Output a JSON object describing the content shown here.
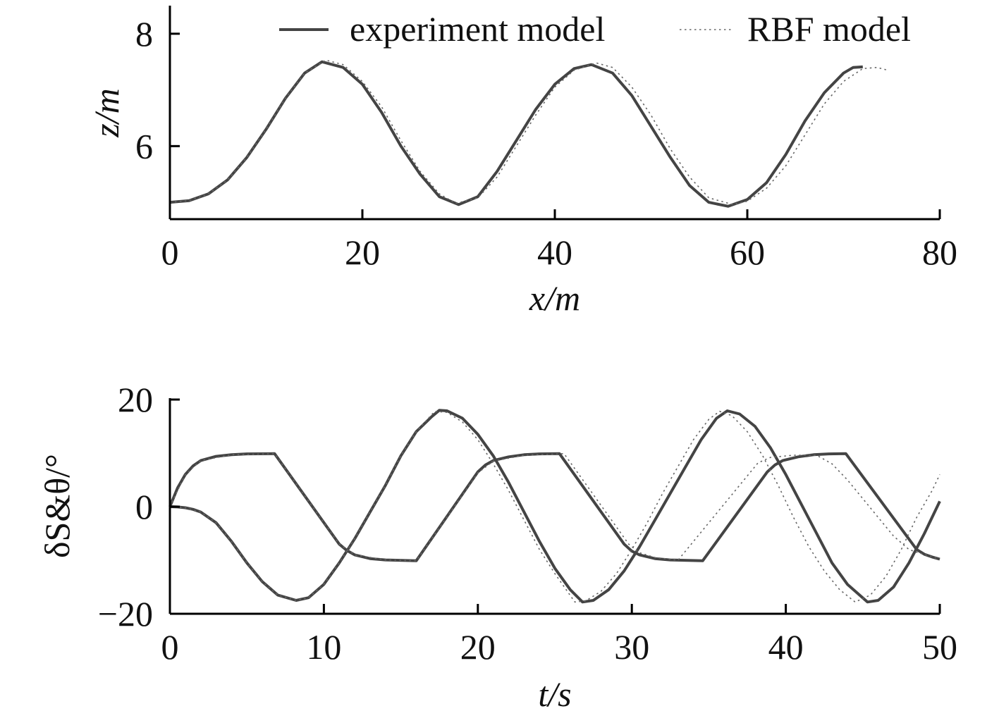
{
  "chart_data": [
    {
      "type": "line",
      "xlabel": "x/m",
      "ylabel": "z/m",
      "xlim": [
        0,
        80
      ],
      "ylim": [
        4.7,
        8.5
      ],
      "xticks": [
        "0",
        "20",
        "40",
        "60",
        "80"
      ],
      "yticks": [
        "6",
        "8"
      ],
      "legend": {
        "placement": "top-right",
        "entries": [
          "experiment model",
          "RBF model"
        ]
      },
      "series": [
        {
          "name": "experiment model",
          "style": "solid",
          "color": "#444444",
          "points": [
            [
              0,
              5.0
            ],
            [
              2,
              5.03
            ],
            [
              4,
              5.15
            ],
            [
              6,
              5.4
            ],
            [
              8,
              5.8
            ],
            [
              10,
              6.3
            ],
            [
              12,
              6.85
            ],
            [
              14,
              7.3
            ],
            [
              15.8,
              7.5
            ],
            [
              18,
              7.4
            ],
            [
              20,
              7.1
            ],
            [
              22,
              6.6
            ],
            [
              24,
              6.0
            ],
            [
              26,
              5.5
            ],
            [
              28,
              5.1
            ],
            [
              30,
              4.96
            ],
            [
              32,
              5.1
            ],
            [
              34,
              5.55
            ],
            [
              36,
              6.1
            ],
            [
              38,
              6.65
            ],
            [
              40,
              7.1
            ],
            [
              42,
              7.38
            ],
            [
              43.8,
              7.45
            ],
            [
              46,
              7.3
            ],
            [
              48,
              6.9
            ],
            [
              50,
              6.35
            ],
            [
              52,
              5.8
            ],
            [
              54,
              5.3
            ],
            [
              56,
              5.0
            ],
            [
              58,
              4.93
            ],
            [
              60,
              5.05
            ],
            [
              62,
              5.35
            ],
            [
              64,
              5.85
            ],
            [
              66,
              6.45
            ],
            [
              68,
              6.95
            ],
            [
              70,
              7.3
            ],
            [
              71,
              7.4
            ],
            [
              72,
              7.41
            ]
          ]
        },
        {
          "name": "RBF model",
          "style": "dotted",
          "color": "#666666",
          "points": [
            [
              0,
              5.0
            ],
            [
              2,
              5.03
            ],
            [
              4,
              5.15
            ],
            [
              6,
              5.4
            ],
            [
              8,
              5.8
            ],
            [
              10,
              6.3
            ],
            [
              12,
              6.85
            ],
            [
              14,
              7.3
            ],
            [
              16.2,
              7.53
            ],
            [
              18,
              7.45
            ],
            [
              20,
              7.15
            ],
            [
              22,
              6.7
            ],
            [
              24,
              6.1
            ],
            [
              26,
              5.55
            ],
            [
              28,
              5.15
            ],
            [
              29.7,
              4.98
            ],
            [
              32,
              5.08
            ],
            [
              34,
              5.45
            ],
            [
              36,
              6.0
            ],
            [
              38,
              6.55
            ],
            [
              40,
              7.05
            ],
            [
              42,
              7.35
            ],
            [
              44.3,
              7.48
            ],
            [
              46,
              7.4
            ],
            [
              48,
              7.05
            ],
            [
              50,
              6.55
            ],
            [
              52,
              5.95
            ],
            [
              54,
              5.45
            ],
            [
              56,
              5.08
            ],
            [
              58.5,
              4.96
            ],
            [
              60,
              5.02
            ],
            [
              62,
              5.25
            ],
            [
              64,
              5.65
            ],
            [
              66,
              6.2
            ],
            [
              68,
              6.75
            ],
            [
              70,
              7.15
            ],
            [
              72,
              7.38
            ],
            [
              73.5,
              7.4
            ],
            [
              74.6,
              7.35
            ]
          ]
        }
      ]
    },
    {
      "type": "line",
      "xlabel": "t/s",
      "ylabel": "δS&θ/°",
      "xlim": [
        0,
        50
      ],
      "ylim": [
        -20,
        20
      ],
      "xticks": [
        "0",
        "10",
        "20",
        "30",
        "40",
        "50"
      ],
      "yticks": [
        "−20",
        "0",
        "20"
      ],
      "series": [
        {
          "style": "solid",
          "color": "#444444",
          "points": [
            [
              0,
              0
            ],
            [
              0.5,
              3.5
            ],
            [
              1,
              6
            ],
            [
              1.5,
              7.6
            ],
            [
              2,
              8.6
            ],
            [
              3,
              9.4
            ],
            [
              4,
              9.7
            ],
            [
              5,
              9.85
            ],
            [
              6.8,
              9.9
            ],
            [
              11,
              -7
            ],
            [
              11.5,
              -8.2
            ],
            [
              12,
              -9
            ],
            [
              13,
              -9.7
            ],
            [
              14,
              -9.95
            ],
            [
              16,
              -10.1
            ],
            [
              20,
              6.5
            ],
            [
              20.5,
              7.8
            ],
            [
              21,
              8.6
            ],
            [
              22,
              9.3
            ],
            [
              23,
              9.7
            ],
            [
              24,
              9.85
            ],
            [
              25.3,
              9.9
            ],
            [
              29.5,
              -7
            ],
            [
              30,
              -8.3
            ],
            [
              30.5,
              -9
            ],
            [
              31.5,
              -9.7
            ],
            [
              32.5,
              -9.95
            ],
            [
              34.6,
              -10.1
            ],
            [
              38.8,
              6.5
            ],
            [
              39.3,
              7.8
            ],
            [
              39.8,
              8.6
            ],
            [
              40.8,
              9.3
            ],
            [
              41.8,
              9.7
            ],
            [
              42.8,
              9.85
            ],
            [
              43.9,
              9.9
            ],
            [
              48.5,
              -8
            ],
            [
              49,
              -8.9
            ],
            [
              49.5,
              -9.4
            ],
            [
              50,
              -9.8
            ]
          ]
        },
        {
          "style": "solid",
          "color": "#555555",
          "points": [
            [
              0,
              0
            ],
            [
              0.5,
              -0.05
            ],
            [
              1,
              -0.2
            ],
            [
              1.5,
              -0.5
            ],
            [
              2,
              -1
            ],
            [
              3,
              -3
            ],
            [
              4,
              -6.5
            ],
            [
              5,
              -10.5
            ],
            [
              6,
              -14
            ],
            [
              7,
              -16.5
            ],
            [
              8.2,
              -17.5
            ],
            [
              9,
              -17
            ],
            [
              10,
              -14.5
            ],
            [
              11,
              -10.5
            ],
            [
              12,
              -6
            ],
            [
              13,
              -1
            ],
            [
              14,
              4
            ],
            [
              15,
              9.5
            ],
            [
              16,
              14
            ],
            [
              17,
              16.8
            ],
            [
              17.5,
              18
            ],
            [
              18,
              17.9
            ],
            [
              19,
              16.5
            ],
            [
              20,
              13.5
            ],
            [
              21,
              9.5
            ],
            [
              22,
              4.5
            ],
            [
              23,
              -1
            ],
            [
              24,
              -6.5
            ],
            [
              25,
              -11.5
            ],
            [
              26,
              -15.5
            ],
            [
              26.8,
              -17.8
            ],
            [
              27.5,
              -17.5
            ],
            [
              28.5,
              -15.5
            ],
            [
              29.5,
              -12
            ],
            [
              30.5,
              -7.5
            ],
            [
              31.5,
              -2.5
            ],
            [
              32.5,
              2.5
            ],
            [
              33.5,
              7.5
            ],
            [
              34.5,
              12.5
            ],
            [
              35.5,
              16.5
            ],
            [
              36.2,
              17.9
            ],
            [
              37,
              17.3
            ],
            [
              38,
              15
            ],
            [
              39,
              11
            ],
            [
              40,
              6
            ],
            [
              41,
              0.5
            ],
            [
              42,
              -5
            ],
            [
              43,
              -10.5
            ],
            [
              44,
              -14.5
            ],
            [
              45.3,
              -17.8
            ],
            [
              46,
              -17.5
            ],
            [
              47,
              -15
            ],
            [
              48,
              -10.5
            ],
            [
              49,
              -5
            ],
            [
              50,
              1
            ]
          ]
        },
        {
          "style": "dotted",
          "color": "#666666",
          "points": [
            [
              0,
              0
            ],
            [
              1,
              6
            ],
            [
              2,
              8.6
            ],
            [
              4,
              9.7
            ],
            [
              6.8,
              9.9
            ],
            [
              11,
              -7
            ],
            [
              12,
              -9
            ],
            [
              14,
              -9.95
            ],
            [
              16,
              -10.1
            ],
            [
              20,
              6.3
            ],
            [
              21,
              8.5
            ],
            [
              23,
              9.6
            ],
            [
              25.6,
              9.9
            ],
            [
              29.8,
              -7
            ],
            [
              30.5,
              -8.6
            ],
            [
              31.5,
              -9.5
            ],
            [
              33,
              -10
            ],
            [
              38.2,
              8.2
            ],
            [
              39,
              9.2
            ],
            [
              40.5,
              9.6
            ],
            [
              42,
              9.6
            ],
            [
              43,
              8
            ],
            [
              44,
              5
            ],
            [
              45,
              1.5
            ],
            [
              46,
              -2
            ],
            [
              47,
              -5.5
            ],
            [
              48,
              -8
            ],
            [
              48.5,
              -8.5
            ],
            [
              50,
              -9.8
            ]
          ]
        },
        {
          "style": "dotted",
          "color": "#666666",
          "points": [
            [
              0,
              0
            ],
            [
              1,
              -0.2
            ],
            [
              2,
              -1
            ],
            [
              3,
              -3
            ],
            [
              4,
              -6.5
            ],
            [
              5,
              -10.5
            ],
            [
              6,
              -14
            ],
            [
              7,
              -16.5
            ],
            [
              8.2,
              -17.5
            ],
            [
              9,
              -17
            ],
            [
              10,
              -14.5
            ],
            [
              11,
              -10.5
            ],
            [
              12,
              -6
            ],
            [
              13,
              -1
            ],
            [
              14,
              4
            ],
            [
              15,
              9.5
            ],
            [
              16,
              14
            ],
            [
              17.2,
              17.8
            ],
            [
              18,
              17.6
            ],
            [
              19,
              15.8
            ],
            [
              20,
              12.5
            ],
            [
              21,
              8
            ],
            [
              22,
              3
            ],
            [
              23,
              -2.5
            ],
            [
              24,
              -8
            ],
            [
              25,
              -12.5
            ],
            [
              26.3,
              -17.8
            ],
            [
              27,
              -17.6
            ],
            [
              28,
              -15.8
            ],
            [
              29,
              -12.5
            ],
            [
              30,
              -8
            ],
            [
              31,
              -3
            ],
            [
              32,
              2.5
            ],
            [
              33,
              7.5
            ],
            [
              34,
              12.5
            ],
            [
              35,
              16.3
            ],
            [
              35.7,
              17.8
            ],
            [
              36.5,
              17
            ],
            [
              37.5,
              14
            ],
            [
              38.5,
              9.5
            ],
            [
              39.5,
              4
            ],
            [
              40.5,
              -2
            ],
            [
              41.5,
              -7.5
            ],
            [
              42.5,
              -12
            ],
            [
              43.5,
              -15.5
            ],
            [
              44.5,
              -17.8
            ],
            [
              45.5,
              -16.5
            ],
            [
              46.5,
              -13
            ],
            [
              47.5,
              -8
            ],
            [
              48.5,
              -2
            ],
            [
              49.5,
              3
            ],
            [
              50,
              6
            ]
          ]
        }
      ]
    }
  ]
}
